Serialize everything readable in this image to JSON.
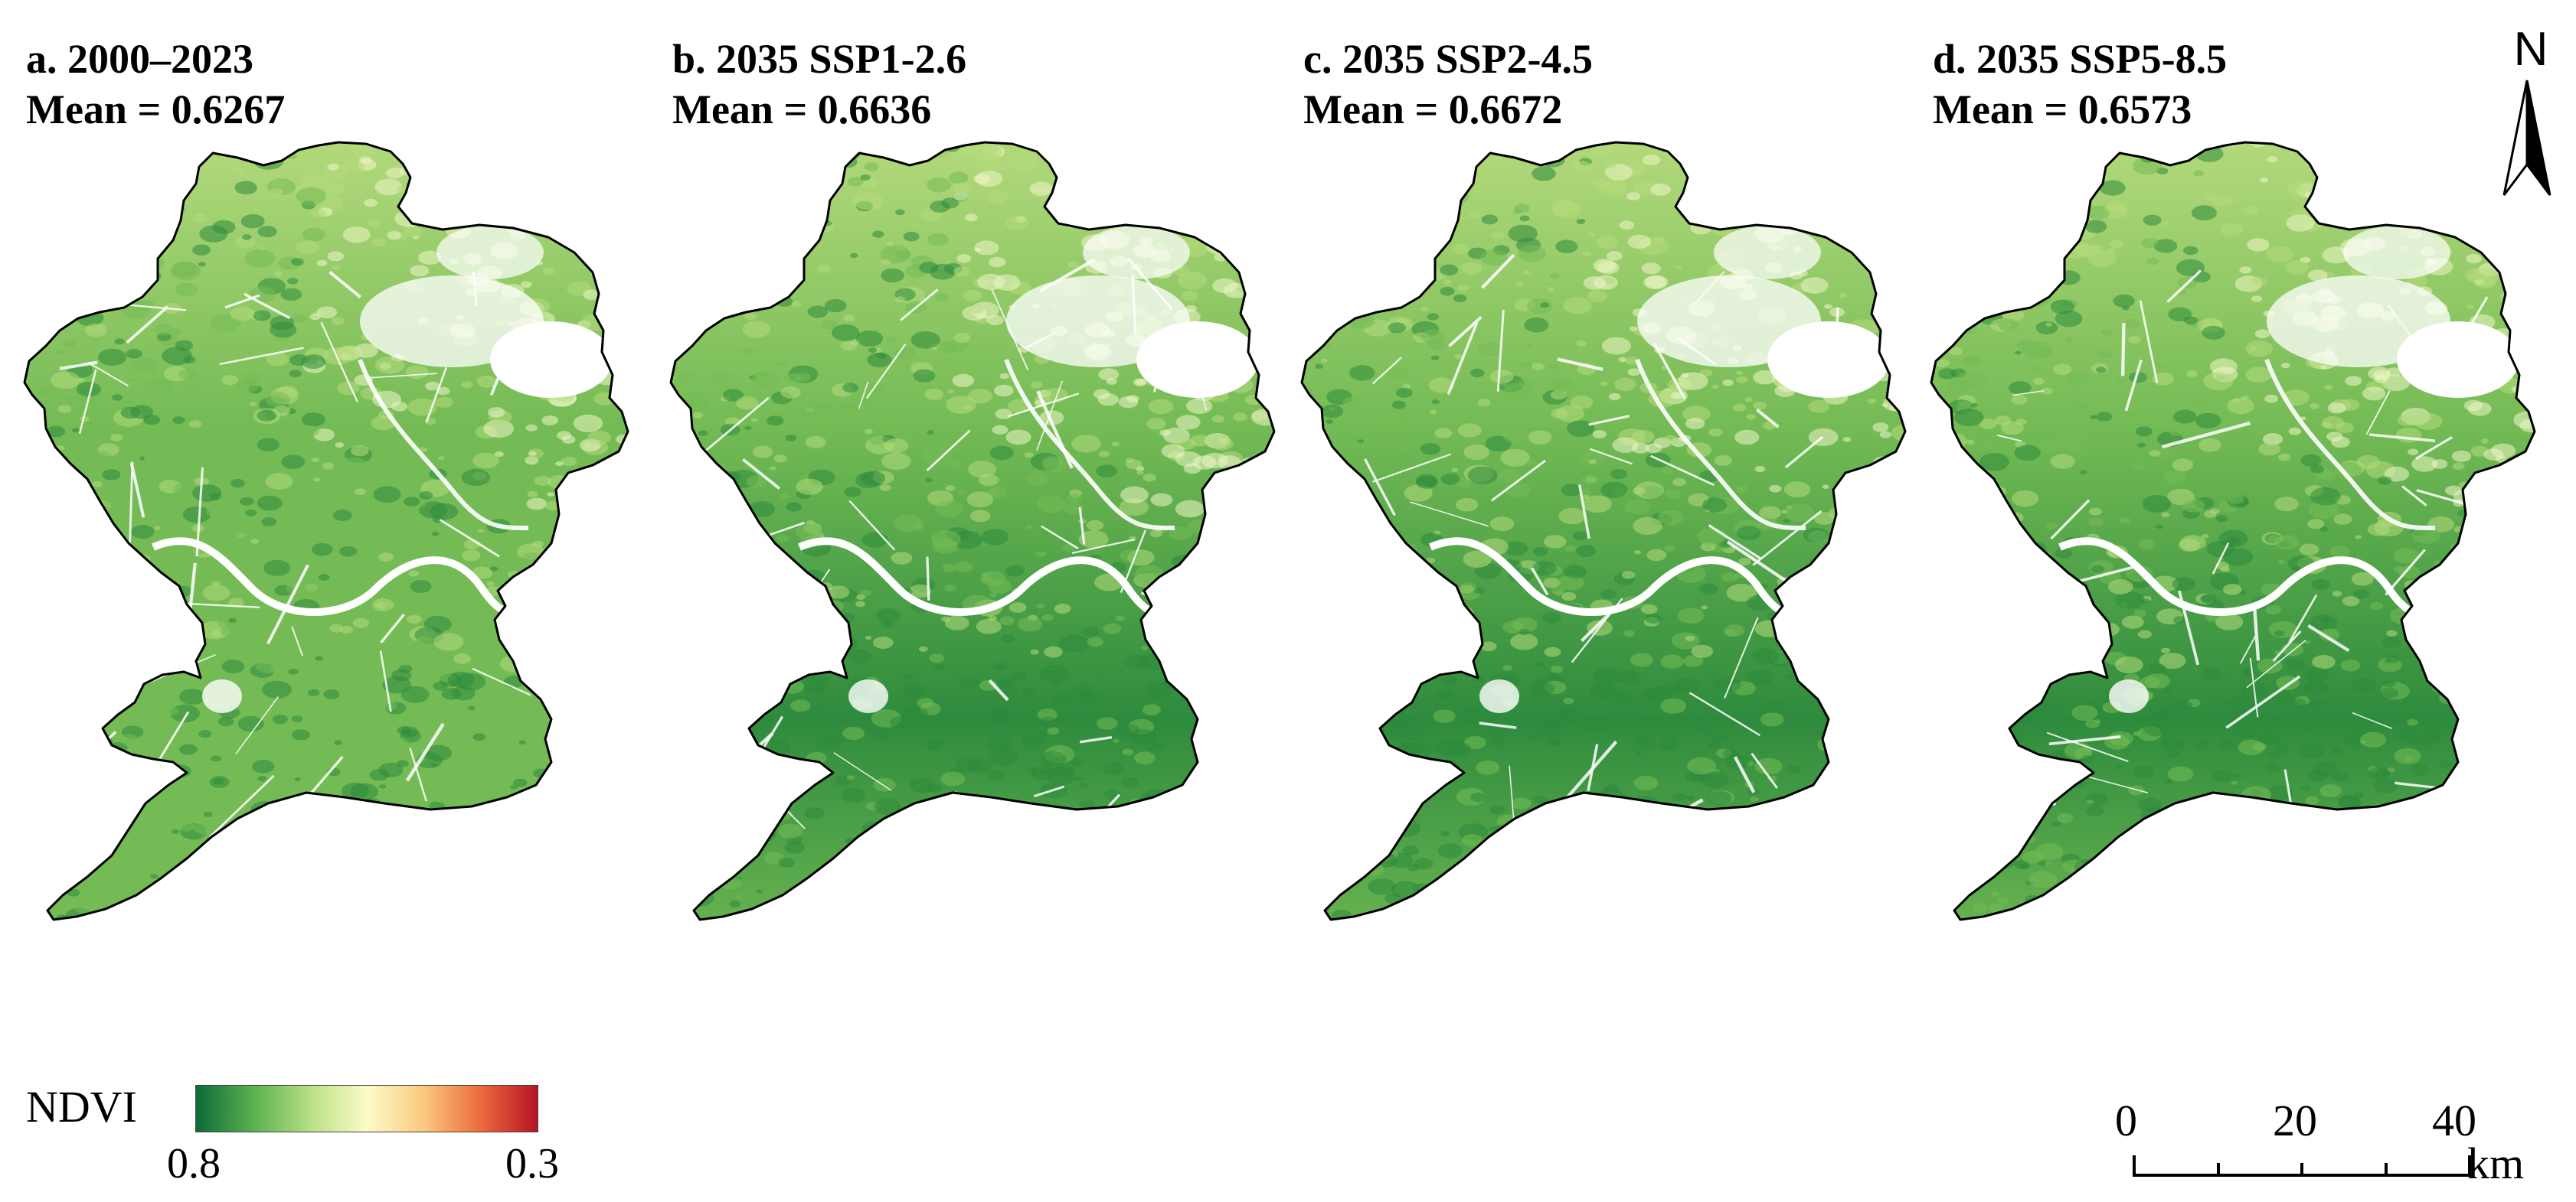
{
  "panels": [
    {
      "id": "a",
      "title": "a. 2000–2023",
      "mean_label": "Mean = 0.6267",
      "mean": 0.6267
    },
    {
      "id": "b",
      "title": "b. 2035 SSP1-2.6",
      "mean_label": "Mean = 0.6636",
      "mean": 0.6636
    },
    {
      "id": "c",
      "title": "c. 2035 SSP2-4.5",
      "mean_label": "Mean = 0.6672",
      "mean": 0.6672
    },
    {
      "id": "d",
      "title": "d. 2035 SSP5-8.5",
      "mean_label": "Mean = 0.6573",
      "mean": 0.6573
    }
  ],
  "north_arrow": {
    "label": "N",
    "icon": "north-arrow-icon"
  },
  "legend": {
    "title": "NDVI",
    "min_label": "0.8",
    "max_label": "0.3",
    "colors": [
      "#0b6b3a",
      "#5ab04f",
      "#b8df84",
      "#fbfcc8",
      "#fbc880",
      "#ec6a3c",
      "#b51325"
    ]
  },
  "scale_bar": {
    "labels": [
      "0",
      "20",
      "40"
    ],
    "unit": "km"
  },
  "map_colors": {
    "boundary": "#000000",
    "dark_green": "#2e8b3d",
    "mid_green": "#74bb55",
    "light_green": "#b5da7c",
    "pale": "#eef5c6",
    "water": "#ffffff"
  }
}
